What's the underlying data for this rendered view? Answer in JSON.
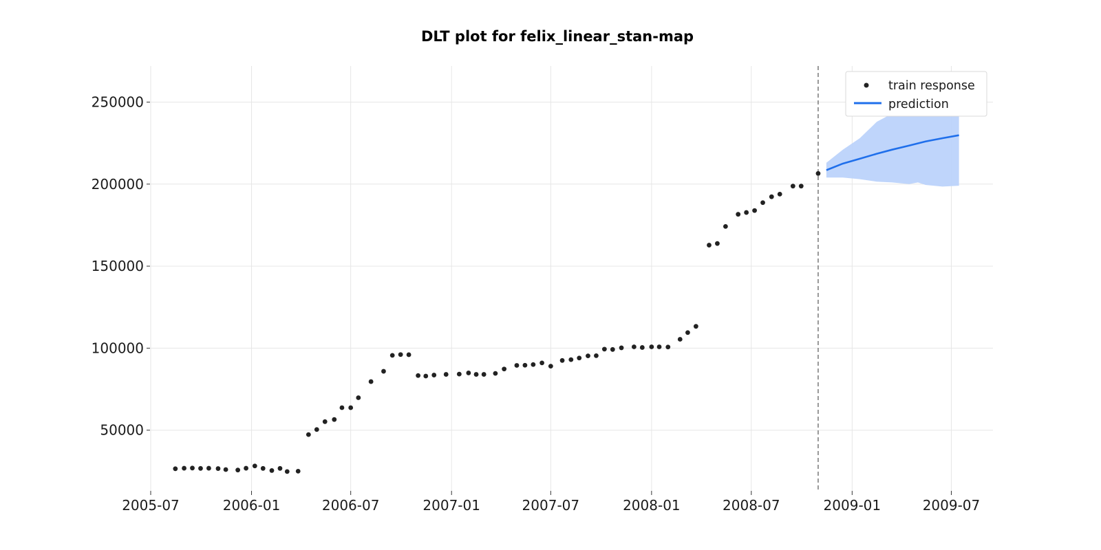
{
  "chart_data": {
    "type": "scatter",
    "title": "DLT plot for felix_linear_stan-map",
    "xlabel": "",
    "ylabel": "",
    "x_axis": {
      "type": "date",
      "range": [
        "2005-07-01",
        "2009-09-15"
      ]
    },
    "y_axis": {
      "range": [
        13000,
        272000
      ]
    },
    "x_ticks": [
      "2005-07",
      "2006-01",
      "2006-07",
      "2007-01",
      "2007-07",
      "2008-01",
      "2008-07",
      "2009-01",
      "2009-07"
    ],
    "y_ticks": [
      50000,
      100000,
      150000,
      200000,
      250000
    ],
    "y_tick_labels": [
      "50000",
      "100000",
      "150000",
      "200000",
      "250000"
    ],
    "grid": true,
    "legend_position": "top-right",
    "cutoff_date": "2008-10-31",
    "series": [
      {
        "name": "train response",
        "kind": "scatter",
        "color": "#222222",
        "points": [
          [
            "2005-08-15",
            26500
          ],
          [
            "2005-08-31",
            26800
          ],
          [
            "2005-09-15",
            26900
          ],
          [
            "2005-09-30",
            26700
          ],
          [
            "2005-10-15",
            26800
          ],
          [
            "2005-11-01",
            26600
          ],
          [
            "2005-11-15",
            26000
          ],
          [
            "2005-12-07",
            25700
          ],
          [
            "2005-12-22",
            26800
          ],
          [
            "2006-01-07",
            28200
          ],
          [
            "2006-01-22",
            26700
          ],
          [
            "2006-02-07",
            25400
          ],
          [
            "2006-02-22",
            26700
          ],
          [
            "2006-03-07",
            24800
          ],
          [
            "2006-03-27",
            25000
          ],
          [
            "2006-04-15",
            47300
          ],
          [
            "2006-04-30",
            50400
          ],
          [
            "2006-05-15",
            55200
          ],
          [
            "2006-06-01",
            56500
          ],
          [
            "2006-06-15",
            63700
          ],
          [
            "2006-07-01",
            63700
          ],
          [
            "2006-07-15",
            69800
          ],
          [
            "2006-08-07",
            79600
          ],
          [
            "2006-08-30",
            85900
          ],
          [
            "2006-09-15",
            95600
          ],
          [
            "2006-09-30",
            96100
          ],
          [
            "2006-10-15",
            96000
          ],
          [
            "2006-11-01",
            83300
          ],
          [
            "2006-11-15",
            83000
          ],
          [
            "2006-11-30",
            83600
          ],
          [
            "2006-12-22",
            84000
          ],
          [
            "2007-01-15",
            84200
          ],
          [
            "2007-02-01",
            84900
          ],
          [
            "2007-02-15",
            84000
          ],
          [
            "2007-03-01",
            84000
          ],
          [
            "2007-03-22",
            84600
          ],
          [
            "2007-04-07",
            87300
          ],
          [
            "2007-04-30",
            89500
          ],
          [
            "2007-05-15",
            89600
          ],
          [
            "2007-05-30",
            90000
          ],
          [
            "2007-06-15",
            91000
          ],
          [
            "2007-07-01",
            89000
          ],
          [
            "2007-07-22",
            92500
          ],
          [
            "2007-08-07",
            93000
          ],
          [
            "2007-08-22",
            94000
          ],
          [
            "2007-09-07",
            95300
          ],
          [
            "2007-09-22",
            95400
          ],
          [
            "2007-10-07",
            99400
          ],
          [
            "2007-10-22",
            99200
          ],
          [
            "2007-11-07",
            100200
          ],
          [
            "2007-11-30",
            100800
          ],
          [
            "2007-12-15",
            100400
          ],
          [
            "2008-01-01",
            100800
          ],
          [
            "2008-01-15",
            100800
          ],
          [
            "2008-01-31",
            100700
          ],
          [
            "2008-02-22",
            105400
          ],
          [
            "2008-03-07",
            109500
          ],
          [
            "2008-03-22",
            113300
          ],
          [
            "2008-04-15",
            162800
          ],
          [
            "2008-04-30",
            163800
          ],
          [
            "2008-05-15",
            174200
          ],
          [
            "2008-06-07",
            181600
          ],
          [
            "2008-06-22",
            182700
          ],
          [
            "2008-07-07",
            183900
          ],
          [
            "2008-07-22",
            188700
          ],
          [
            "2008-08-07",
            192300
          ],
          [
            "2008-08-22",
            193900
          ],
          [
            "2008-09-15",
            198800
          ],
          [
            "2008-09-30",
            198800
          ],
          [
            "2008-10-31",
            206500
          ]
        ]
      },
      {
        "name": "prediction",
        "kind": "line",
        "color": "#1f6feb",
        "points": [
          [
            "2008-11-15",
            208500
          ],
          [
            "2008-12-15",
            212500
          ],
          [
            "2009-01-15",
            215500
          ],
          [
            "2009-02-15",
            218500
          ],
          [
            "2009-03-15",
            221000
          ],
          [
            "2009-04-15",
            223500
          ],
          [
            "2009-05-15",
            226000
          ],
          [
            "2009-06-15",
            228000
          ],
          [
            "2009-07-15",
            229800
          ]
        ]
      },
      {
        "kind": "band",
        "color": "#bcd3fb",
        "points": [
          [
            "2008-11-15",
            204000,
            213000
          ],
          [
            "2008-12-15",
            204000,
            221000
          ],
          [
            "2009-01-15",
            203000,
            228000
          ],
          [
            "2009-02-15",
            201500,
            238000
          ],
          [
            "2009-03-15",
            201000,
            243000
          ],
          [
            "2009-04-15",
            200000,
            248000
          ],
          [
            "2009-05-01",
            201000,
            252000
          ],
          [
            "2009-05-15",
            199500,
            254000
          ],
          [
            "2009-06-15",
            198500,
            257000
          ],
          [
            "2009-07-15",
            199000,
            258000
          ]
        ]
      }
    ]
  }
}
